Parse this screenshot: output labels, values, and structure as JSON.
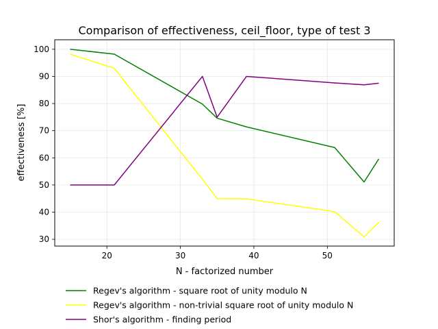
{
  "chart_data": {
    "type": "line",
    "title": "Comparison of effectiveness, ceil_floor, type of test 3",
    "xlabel": "N - factorized number",
    "ylabel": "effectiveness [%]",
    "xlim": [
      12.9,
      59.1
    ],
    "ylim": [
      27.5,
      103.5
    ],
    "xticks": [
      20,
      30,
      40,
      50
    ],
    "yticks": [
      30,
      40,
      50,
      60,
      70,
      80,
      90,
      100
    ],
    "grid": true,
    "legend_position": "below-plot",
    "x": [
      15,
      21,
      33,
      35,
      39,
      51,
      55,
      57
    ],
    "series": [
      {
        "name": "Regev's algorithm - square root of unity modulo N",
        "color": "#008000",
        "values": [
          100,
          98.2,
          79.8,
          74.6,
          71.4,
          63.8,
          51.1,
          59.6
        ]
      },
      {
        "name": "Regev's algorithm - non-trivial square root of unity modulo N",
        "color": "#ffff00",
        "values": [
          98.2,
          93.0,
          52.1,
          45.0,
          44.9,
          40.2,
          30.9,
          36.2
        ]
      },
      {
        "name": "Shor's algorithm - finding period",
        "color": "#800080",
        "values": [
          50,
          50,
          90,
          75,
          90,
          87.6,
          86.9,
          87.5
        ]
      }
    ]
  }
}
